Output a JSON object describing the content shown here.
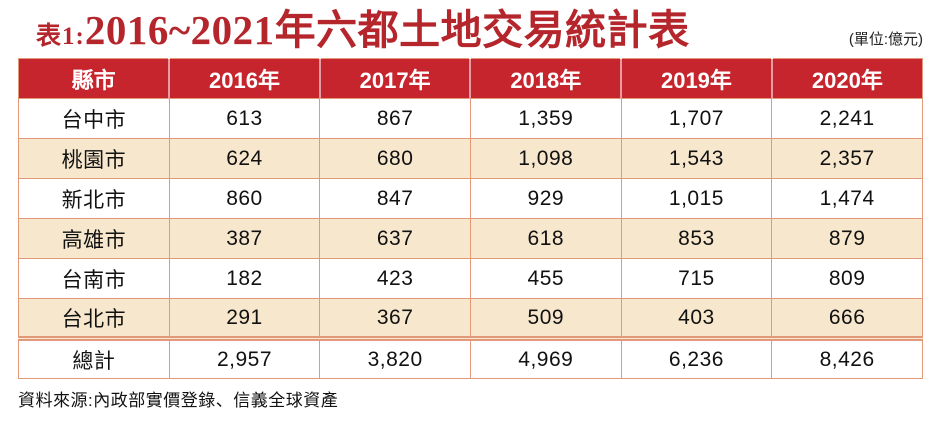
{
  "title": {
    "prefix": "表1:",
    "main": "2016~2021年六都土地交易統計表",
    "unit": "(單位:億元)"
  },
  "table": {
    "columns": [
      "縣市",
      "2016年",
      "2017年",
      "2018年",
      "2019年",
      "2020年"
    ],
    "rows": [
      {
        "city": "台中市",
        "values": [
          "613",
          "867",
          "1,359",
          "1,707",
          "2,241"
        ]
      },
      {
        "city": "桃園市",
        "values": [
          "624",
          "680",
          "1,098",
          "1,543",
          "2,357"
        ]
      },
      {
        "city": "新北市",
        "values": [
          "860",
          "847",
          "929",
          "1,015",
          "1,474"
        ]
      },
      {
        "city": "高雄市",
        "values": [
          "387",
          "637",
          "618",
          "853",
          "879"
        ]
      },
      {
        "city": "台南市",
        "values": [
          "182",
          "423",
          "455",
          "715",
          "809"
        ]
      },
      {
        "city": "台北市",
        "values": [
          "291",
          "367",
          "509",
          "403",
          "666"
        ]
      }
    ],
    "total_row": {
      "label": "總計",
      "values": [
        "2,957",
        "3,820",
        "4,969",
        "6,236",
        "8,426"
      ]
    }
  },
  "footer": {
    "source": "資料來源:內政部實價登錄、信義全球資產"
  },
  "colors": {
    "header_red": "#c7252e",
    "title_red": "#b5262c",
    "row_beige": "#f7e7cd",
    "border_salmon": "#e2997a",
    "text_black": "#111111"
  },
  "chart_data": {
    "type": "table",
    "title": "2016~2021年六都土地交易統計表",
    "unit": "億元",
    "categories": [
      "2016年",
      "2017年",
      "2018年",
      "2019年",
      "2020年"
    ],
    "series": [
      {
        "name": "台中市",
        "values": [
          613,
          867,
          1359,
          1707,
          2241
        ]
      },
      {
        "name": "桃園市",
        "values": [
          624,
          680,
          1098,
          1543,
          2357
        ]
      },
      {
        "name": "新北市",
        "values": [
          860,
          847,
          929,
          1015,
          1474
        ]
      },
      {
        "name": "高雄市",
        "values": [
          387,
          637,
          618,
          853,
          879
        ]
      },
      {
        "name": "台南市",
        "values": [
          182,
          423,
          455,
          715,
          809
        ]
      },
      {
        "name": "台北市",
        "values": [
          291,
          367,
          509,
          403,
          666
        ]
      },
      {
        "name": "總計",
        "values": [
          2957,
          3820,
          4969,
          6236,
          8426
        ]
      }
    ],
    "source": "資料來源:內政部實價登錄、信義全球資產"
  }
}
